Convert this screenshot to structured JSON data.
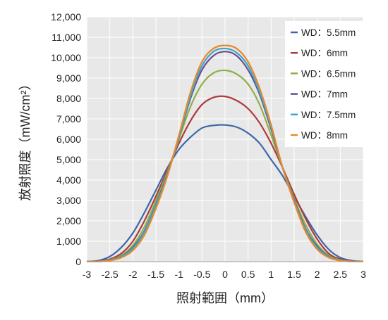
{
  "chart_data": {
    "type": "line",
    "xlabel": "照射範囲（mm）",
    "ylabel": "放射照度（mW/cm²）",
    "xlim": [
      -3,
      3
    ],
    "ylim": [
      0,
      12000
    ],
    "x_ticks": [
      "-3",
      "-2.5",
      "-2",
      "-1.5",
      "-1",
      "-0.5",
      "0",
      "0.5",
      "1",
      "1.5",
      "2",
      "2.5",
      "3"
    ],
    "y_ticks": [
      "0",
      "1,000",
      "2,000",
      "3,000",
      "4,000",
      "5,000",
      "6,000",
      "7,000",
      "8,000",
      "9,000",
      "10,000",
      "11,000",
      "12,000"
    ],
    "grid": true,
    "legend_position": "top-right",
    "x": [
      -3,
      -2.75,
      -2.5,
      -2.25,
      -2,
      -1.75,
      -1.5,
      -1.25,
      -1,
      -0.75,
      -0.5,
      -0.25,
      0,
      0.25,
      0.5,
      0.75,
      1,
      1.25,
      1.5,
      1.75,
      2,
      2.25,
      2.5,
      2.75,
      3
    ],
    "series": [
      {
        "name": "WD：5.5mm",
        "color": "#3c68a8",
        "values": [
          10,
          50,
          250,
          700,
          1400,
          2400,
          3500,
          4600,
          5500,
          6100,
          6550,
          6680,
          6700,
          6600,
          6300,
          5800,
          5000,
          4200,
          3200,
          2200,
          1300,
          600,
          200,
          50,
          10
        ]
      },
      {
        "name": "WD：6mm",
        "color": "#b03a3a",
        "values": [
          5,
          20,
          120,
          400,
          1000,
          2000,
          3200,
          4500,
          5800,
          6900,
          7700,
          8050,
          8100,
          7900,
          7500,
          6800,
          5800,
          4600,
          3300,
          2100,
          1100,
          400,
          120,
          20,
          5
        ]
      },
      {
        "name": "WD：6.5mm",
        "color": "#8fb046",
        "values": [
          5,
          15,
          80,
          300,
          800,
          1700,
          3000,
          4400,
          6000,
          7600,
          8700,
          9250,
          9380,
          9200,
          8700,
          7700,
          6200,
          4600,
          3100,
          1800,
          850,
          300,
          80,
          15,
          5
        ]
      },
      {
        "name": "WD：7mm",
        "color": "#6a4e92",
        "values": [
          5,
          10,
          60,
          250,
          700,
          1500,
          2800,
          4300,
          6100,
          8000,
          9400,
          10100,
          10300,
          10100,
          9400,
          8200,
          6500,
          4600,
          3000,
          1600,
          750,
          250,
          60,
          10,
          5
        ]
      },
      {
        "name": "WD：7.5mm",
        "color": "#3ba5c6",
        "values": [
          5,
          10,
          60,
          240,
          650,
          1450,
          2750,
          4250,
          6100,
          8100,
          9600,
          10300,
          10450,
          10250,
          9600,
          8300,
          6600,
          4600,
          2950,
          1550,
          700,
          240,
          60,
          10,
          5
        ]
      },
      {
        "name": "WD：8mm",
        "color": "#e8892d",
        "values": [
          5,
          10,
          50,
          200,
          550,
          1300,
          2600,
          4200,
          6200,
          8300,
          9800,
          10450,
          10600,
          10450,
          9800,
          8500,
          6700,
          4600,
          2900,
          1450,
          600,
          200,
          50,
          10,
          5
        ]
      }
    ]
  }
}
